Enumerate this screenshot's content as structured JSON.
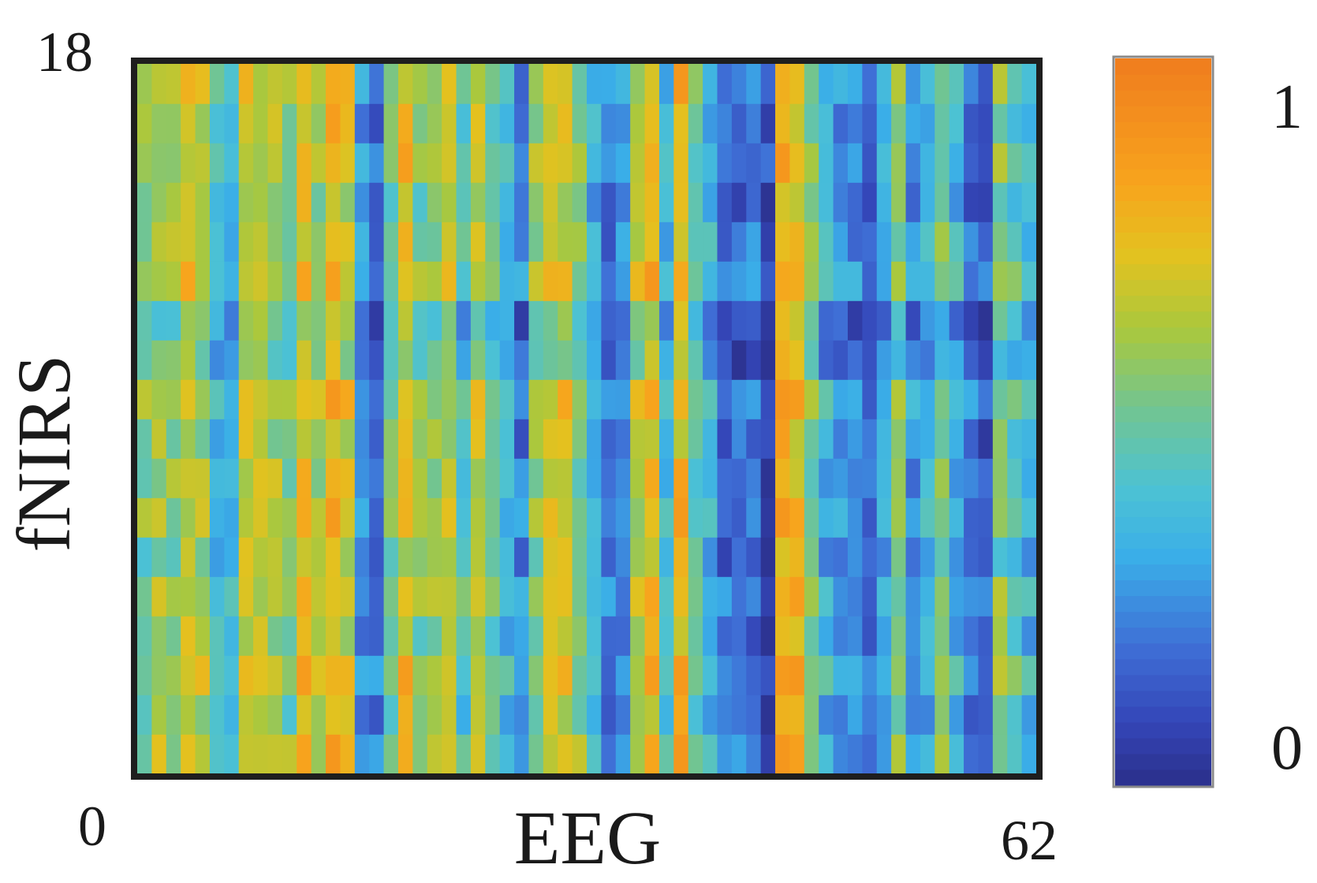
{
  "chart_data": {
    "type": "heatmap",
    "title": "",
    "xlabel": "EEG",
    "ylabel": "fNIRS",
    "x_tick_labels": {
      "min": "0",
      "max": "62"
    },
    "y_tick_labels": {
      "min": "0",
      "max": "18"
    },
    "xlim": [
      0,
      62
    ],
    "ylim": [
      0,
      18
    ],
    "grid": false,
    "colorbar": {
      "placement": "right",
      "min_label": "0",
      "max_label": "1",
      "range": [
        0,
        1.15
      ],
      "colormap": [
        "#2b2f8a",
        "#3446b8",
        "#3f6fd6",
        "#3aaee8",
        "#4cc2d4",
        "#73c58f",
        "#a9c83e",
        "#e3c21f",
        "#f7a51d",
        "#f07c1e"
      ]
    },
    "colorbar_stops": [
      0,
      0.1,
      0.22,
      0.36,
      0.47,
      0.6,
      0.72,
      0.84,
      0.95,
      1.15
    ],
    "column_base": [
      0.62,
      0.7,
      0.66,
      0.78,
      0.72,
      0.45,
      0.38,
      0.8,
      0.76,
      0.72,
      0.62,
      0.84,
      0.7,
      0.9,
      0.78,
      0.28,
      0.2,
      0.58,
      0.84,
      0.62,
      0.66,
      0.74,
      0.5,
      0.78,
      0.56,
      0.42,
      0.26,
      0.66,
      0.78,
      0.8,
      0.62,
      0.4,
      0.22,
      0.3,
      0.72,
      0.88,
      0.4,
      0.88,
      0.55,
      0.4,
      0.24,
      0.2,
      0.22,
      0.08,
      0.94,
      0.86,
      0.62,
      0.4,
      0.3,
      0.28,
      0.2,
      0.35,
      0.62,
      0.3,
      0.4,
      0.6,
      0.4,
      0.22,
      0.18,
      0.62,
      0.52,
      0.4
    ],
    "row_base": [
      0.05,
      -0.04,
      0.06,
      -0.02,
      0.04,
      -0.06,
      0.02,
      0.0,
      -0.03,
      0.05,
      -0.12,
      -0.14,
      0.06,
      0.02,
      -0.03,
      0.04,
      0.0,
      0.03
    ],
    "variation_amplitude": 0.22
  }
}
